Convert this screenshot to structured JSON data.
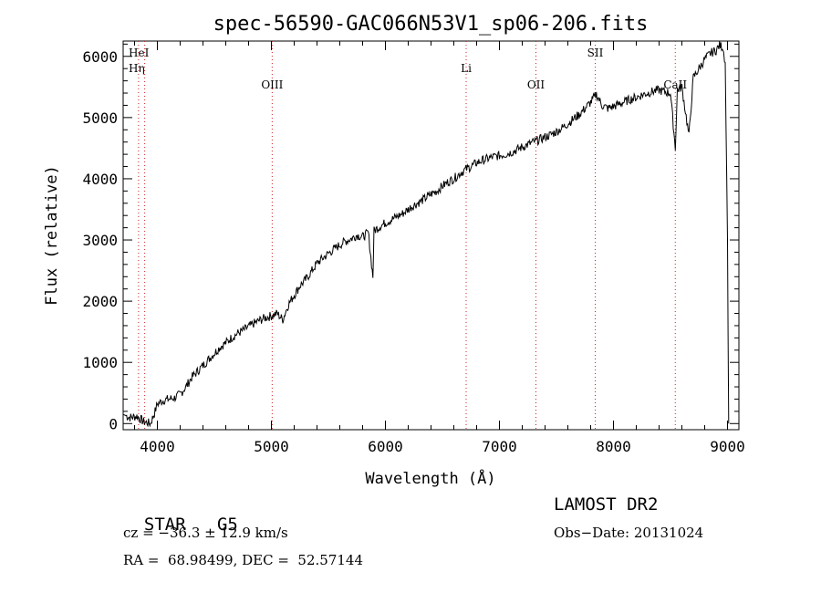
{
  "chart_data": {
    "type": "line",
    "title": "spec-56590-GAC066N53V1_sp06-206.fits",
    "xlabel": "Wavelength (Å)",
    "ylabel": "Flux (relative)",
    "xlim": [
      3700,
      9100
    ],
    "ylim": [
      -100,
      6250
    ],
    "x_ticks": [
      4000,
      5000,
      6000,
      7000,
      8000,
      9000
    ],
    "y_ticks": [
      0,
      1000,
      2000,
      3000,
      4000,
      5000,
      6000
    ],
    "grid": false,
    "series": [
      {
        "x": [
          3700,
          3760,
          3820,
          3880,
          3940,
          3980,
          4000,
          4050,
          4100,
          4150,
          4200,
          4250,
          4300,
          4350,
          4400,
          4450,
          4500,
          4550,
          4600,
          4650,
          4700,
          4750,
          4800,
          4850,
          4900,
          4950,
          5000,
          5050,
          5100,
          5150,
          5200,
          5250,
          5300,
          5350,
          5400,
          5450,
          5500,
          5550,
          5600,
          5650,
          5700,
          5750,
          5800,
          5850,
          5890,
          5900,
          5950,
          6000,
          6050,
          6100,
          6150,
          6200,
          6250,
          6300,
          6350,
          6400,
          6450,
          6500,
          6550,
          6600,
          6650,
          6700,
          6750,
          6800,
          6850,
          6900,
          6950,
          7000,
          7050,
          7100,
          7150,
          7200,
          7250,
          7300,
          7350,
          7400,
          7450,
          7500,
          7550,
          7600,
          7650,
          7700,
          7750,
          7800,
          7850,
          7900,
          7950,
          8000,
          8050,
          8100,
          8150,
          8200,
          8250,
          8300,
          8350,
          8400,
          8450,
          8500,
          8542,
          8560,
          8600,
          8662,
          8700,
          8750,
          8800,
          8850,
          8900,
          8930,
          8960,
          8980,
          9000,
          9010
        ],
        "y": [
          150,
          100,
          120,
          30,
          0,
          200,
          320,
          380,
          400,
          420,
          480,
          600,
          750,
          850,
          950,
          1050,
          1150,
          1250,
          1320,
          1400,
          1470,
          1520,
          1580,
          1640,
          1690,
          1730,
          1760,
          1800,
          1700,
          1950,
          2100,
          2250,
          2350,
          2480,
          2620,
          2700,
          2780,
          2850,
          2920,
          2980,
          3020,
          3080,
          3050,
          3120,
          2400,
          3150,
          3220,
          3280,
          3330,
          3380,
          3430,
          3500,
          3570,
          3620,
          3680,
          3750,
          3800,
          3880,
          3950,
          4000,
          4080,
          4150,
          4200,
          4260,
          4300,
          4330,
          4360,
          4380,
          4400,
          4430,
          4470,
          4520,
          4560,
          4600,
          4640,
          4680,
          4720,
          4770,
          4830,
          4900,
          4980,
          5050,
          5150,
          5250,
          5380,
          5200,
          5150,
          5180,
          5220,
          5260,
          5300,
          5330,
          5370,
          5400,
          5430,
          5450,
          5420,
          5400,
          4500,
          5450,
          5500,
          4700,
          5650,
          5800,
          5950,
          6050,
          6100,
          6180,
          6150,
          5900,
          3000,
          0
        ]
      }
    ],
    "lines": [
      {
        "name": "HeI",
        "x": 3889
      },
      {
        "name": "Hη",
        "x": 3835
      },
      {
        "name": "OIII",
        "x": 5007
      },
      {
        "name": "Li",
        "x": 6708
      },
      {
        "name": "OII",
        "x": 7320
      },
      {
        "name": "SII",
        "x": 7840
      },
      {
        "name": "CaII",
        "x": 8542
      }
    ]
  },
  "info": {
    "class": "STAR",
    "subclass": "G5",
    "survey": "LAMOST DR2",
    "cz": "cz = −36.3 ± 12.9 km/s",
    "obs_date": "Obs−Date: 20131024",
    "radec": "RA =  68.98499, DEC =  52.57144"
  }
}
